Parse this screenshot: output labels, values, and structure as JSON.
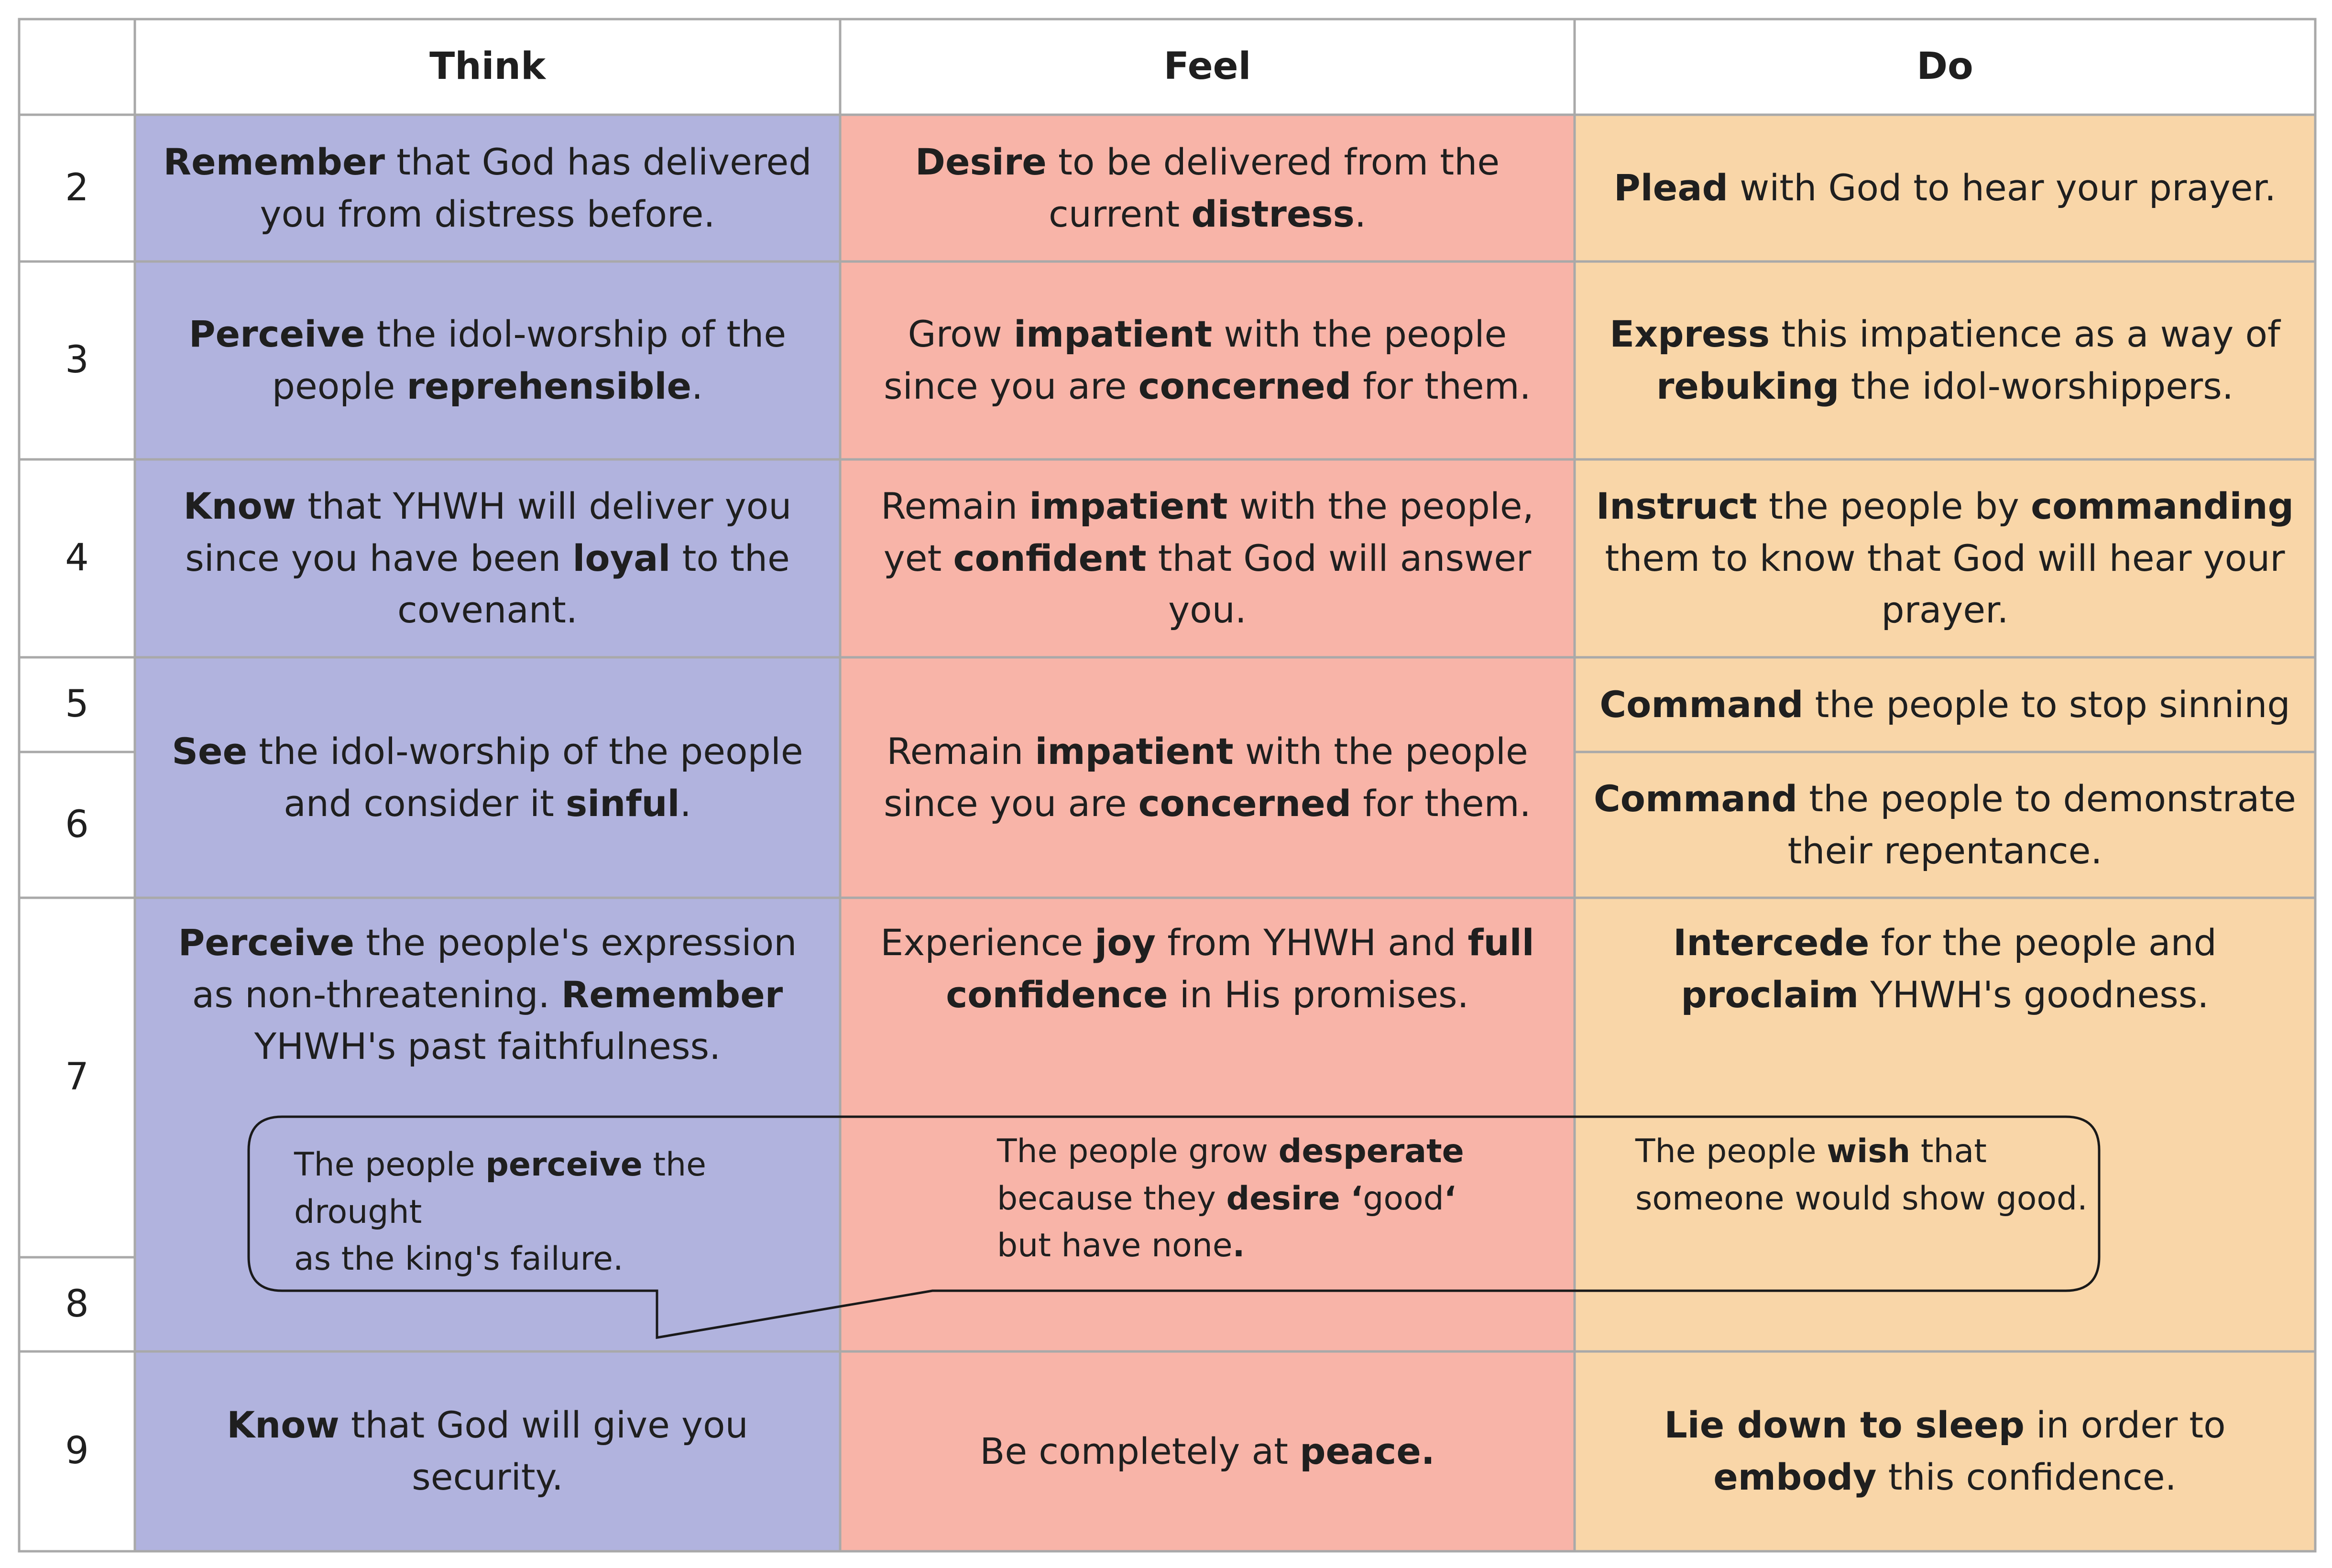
{
  "header": {
    "think": "Think",
    "feel": "Feel",
    "do": "Do"
  },
  "rows": {
    "r2": {
      "num": "2",
      "think": [
        {
          "b": "Remember"
        },
        {
          "t": " that God has delivered you from distress before."
        }
      ],
      "feel": [
        {
          "b": "Desire"
        },
        {
          "t": " to be delivered from the current "
        },
        {
          "b": "distress"
        },
        {
          "t": "."
        }
      ],
      "do": [
        {
          "b": "Plead"
        },
        {
          "t": " with God to hear your prayer."
        }
      ]
    },
    "r3": {
      "num": "3",
      "think": [
        {
          "b": "Perceive"
        },
        {
          "t": " the idol-worship of the people "
        },
        {
          "b": "reprehensible"
        },
        {
          "t": "."
        }
      ],
      "feel": [
        {
          "t": "Grow "
        },
        {
          "b": "impatient"
        },
        {
          "t": " with the people since you are "
        },
        {
          "b": "concerned"
        },
        {
          "t": " for them."
        }
      ],
      "do": [
        {
          "b": "Express"
        },
        {
          "t": " this impatience as a way of "
        },
        {
          "b": "rebuking"
        },
        {
          "t": " the idol-worshippers."
        }
      ]
    },
    "r4": {
      "num": "4",
      "think": [
        {
          "b": "Know"
        },
        {
          "t": " that YHWH will deliver you since you have been "
        },
        {
          "b": "loyal"
        },
        {
          "t": " to the covenant."
        }
      ],
      "feel": [
        {
          "t": "Remain "
        },
        {
          "b": "impatient"
        },
        {
          "t": " with the people, yet "
        },
        {
          "b": "confident"
        },
        {
          "t": " that God will answer you."
        }
      ],
      "do": [
        {
          "b": "Instruct"
        },
        {
          "t": " the people by "
        },
        {
          "b": "commanding"
        },
        {
          "t": " them to know that God will hear your prayer."
        }
      ]
    },
    "r5": {
      "num": "5",
      "do": [
        {
          "b": "Command"
        },
        {
          "t": " the people to stop sinning"
        }
      ]
    },
    "r6": {
      "num": "6",
      "do": [
        {
          "b": "Command"
        },
        {
          "t": " the people to demonstrate their repentance."
        }
      ]
    },
    "r56": {
      "think": [
        {
          "b": "See"
        },
        {
          "t": " the idol-worship of the people and consider it "
        },
        {
          "b": "sinful"
        },
        {
          "t": "."
        }
      ],
      "feel": [
        {
          "t": "Remain "
        },
        {
          "b": "impatient"
        },
        {
          "t": " with the people since you are "
        },
        {
          "b": "concerned"
        },
        {
          "t": " for them."
        }
      ]
    },
    "r7": {
      "num": "7",
      "think": [
        {
          "b": "Perceive"
        },
        {
          "t": " the people's expression as non-threatening. "
        },
        {
          "b": "Remember"
        },
        {
          "t": " YHWH's past faithfulness."
        }
      ],
      "feel": [
        {
          "t": "Experience "
        },
        {
          "b": "joy"
        },
        {
          "t": " from YHWH and "
        },
        {
          "b": "full confidence"
        },
        {
          "t": " in His promises."
        }
      ],
      "do": [
        {
          "b": "Intercede"
        },
        {
          "t": " for the people and "
        },
        {
          "b": "proclaim"
        },
        {
          "t": " YHWH's goodness."
        }
      ]
    },
    "r8": {
      "num": "8"
    },
    "r9": {
      "num": "9",
      "think": [
        {
          "b": "Know"
        },
        {
          "t": " that God will give you security."
        }
      ],
      "feel": [
        {
          "t": "Be completely at "
        },
        {
          "b": "peace."
        }
      ],
      "do": [
        {
          "b": "Lie down to sleep"
        },
        {
          "t": " in order to "
        },
        {
          "b": "embody"
        },
        {
          "t": " this confidence."
        }
      ]
    }
  },
  "bubble": {
    "think": [
      {
        "t": "The people "
      },
      {
        "b": "perceive"
      },
      {
        "t": " the drought"
      },
      {
        "br": 1
      },
      {
        "t": "as the king's failure."
      }
    ],
    "feel": [
      {
        "t": "The people grow "
      },
      {
        "b": "desperate"
      },
      {
        "br": 1
      },
      {
        "t": "because they "
      },
      {
        "b": "desire"
      },
      {
        "t": " "
      },
      {
        "b": "‘"
      },
      {
        "t": "good"
      },
      {
        "b": "‘"
      },
      {
        "br": 1
      },
      {
        "t": "but have none"
      },
      {
        "b": "."
      }
    ],
    "do": [
      {
        "t": "The people "
      },
      {
        "b": "wish"
      },
      {
        "t": " that"
      },
      {
        "br": 1
      },
      {
        "t": "someone would show good."
      }
    ]
  },
  "colors": {
    "think": "#b1b3de",
    "feel": "#f8b4a8",
    "do": "#f9d6a8",
    "grid": "#a9a9a9"
  }
}
